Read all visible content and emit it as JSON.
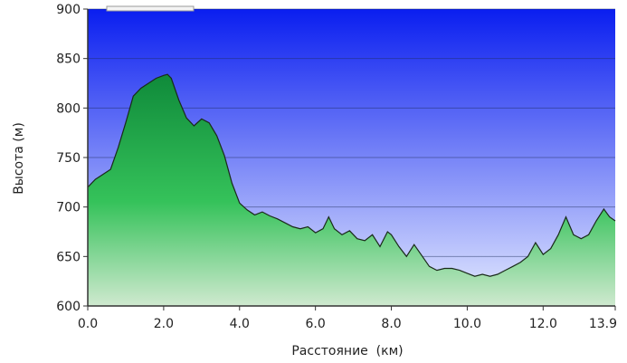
{
  "chart_data": {
    "type": "area",
    "title": "",
    "xlabel": "Расстояние  (км)",
    "ylabel": "Высота (м)",
    "xlim": [
      0,
      13.9
    ],
    "ylim": [
      600,
      900
    ],
    "x_ticks": [
      "0.0",
      "2.0",
      "4.0",
      "6.0",
      "8.0",
      "10.0",
      "12.0",
      "13.9"
    ],
    "y_ticks": [
      "600",
      "650",
      "700",
      "750",
      "800",
      "850",
      "900"
    ],
    "grid": "horizontal",
    "colors": {
      "sky_top": "#0a1ef0",
      "sky_bottom": "#e6ecff",
      "fill_top": "#0f8a3a",
      "fill_mid": "#35c25a",
      "fill_bottom": "#cfe9cf",
      "outline": "#1a2a1a"
    },
    "series": [
      {
        "x": [
          0.0,
          0.2,
          0.4,
          0.6,
          0.8,
          1.0,
          1.2,
          1.4,
          1.6,
          1.8,
          2.0,
          2.1,
          2.2,
          2.4,
          2.6,
          2.8,
          3.0,
          3.2,
          3.4,
          3.6,
          3.8,
          4.0,
          4.2,
          4.4,
          4.6,
          4.8,
          5.0,
          5.2,
          5.4,
          5.6,
          5.8,
          6.0,
          6.2,
          6.35,
          6.5,
          6.7,
          6.9,
          7.1,
          7.3,
          7.5,
          7.7,
          7.9,
          8.0,
          8.2,
          8.4,
          8.6,
          8.8,
          9.0,
          9.2,
          9.4,
          9.6,
          9.8,
          10.0,
          10.2,
          10.4,
          10.6,
          10.8,
          11.0,
          11.2,
          11.4,
          11.6,
          11.8,
          12.0,
          12.2,
          12.4,
          12.6,
          12.8,
          13.0,
          13.2,
          13.4,
          13.6,
          13.75,
          13.9
        ],
        "y": [
          720,
          728,
          733,
          738,
          760,
          785,
          812,
          820,
          825,
          830,
          833,
          834,
          830,
          808,
          790,
          782,
          789,
          785,
          772,
          752,
          724,
          704,
          697,
          692,
          695,
          691,
          688,
          684,
          680,
          678,
          680,
          674,
          678,
          690,
          678,
          672,
          676,
          668,
          666,
          672,
          660,
          675,
          672,
          660,
          650,
          662,
          651,
          640,
          636,
          638,
          638,
          636,
          633,
          630,
          632,
          630,
          632,
          636,
          640,
          644,
          650,
          664,
          652,
          658,
          672,
          690,
          672,
          668,
          672,
          686,
          698,
          690,
          686
        ]
      }
    ]
  }
}
